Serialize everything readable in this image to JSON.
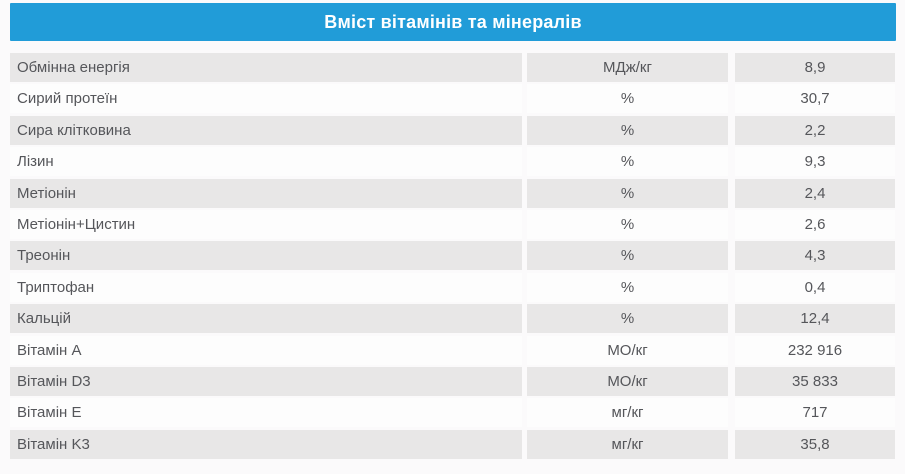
{
  "page": {
    "background": "#fbfafb"
  },
  "header": {
    "title": "Вміст вітамінів та мінералів",
    "background": "#219cd8",
    "text_color": "#ffffff"
  },
  "table": {
    "row_text_color": "#55565a",
    "row_odd_background": "#e8e7e7",
    "row_even_background": "#fdfdfd"
  },
  "chart_data": {
    "type": "table",
    "title": "Вміст вітамінів та мінералів",
    "legend_position": "none",
    "grid": false,
    "rows": [
      {
        "parameter": "Обмінна енергія",
        "unit": "МДж/кг",
        "value": "8,9"
      },
      {
        "parameter": "Сирий протеїн",
        "unit": "%",
        "value": "30,7"
      },
      {
        "parameter": "Сира клітковина",
        "unit": "%",
        "value": "2,2"
      },
      {
        "parameter": "Лізин",
        "unit": "%",
        "value": "9,3"
      },
      {
        "parameter": "Метіонін",
        "unit": "%",
        "value": "2,4"
      },
      {
        "parameter": "Метіонін+Цистин",
        "unit": "%",
        "value": "2,6"
      },
      {
        "parameter": "Треонін",
        "unit": "%",
        "value": "4,3"
      },
      {
        "parameter": "Триптофан",
        "unit": "%",
        "value": "0,4"
      },
      {
        "parameter": "Кальцій",
        "unit": "%",
        "value": "12,4"
      },
      {
        "parameter": "Вітамін A",
        "unit": "МО/кг",
        "value": "232 916"
      },
      {
        "parameter": "Вітамін D3",
        "unit": "МО/кг",
        "value": "35 833"
      },
      {
        "parameter": "Вітамін E",
        "unit": "мг/кг",
        "value": "717"
      },
      {
        "parameter": "Вітамін K3",
        "unit": "мг/кг",
        "value": "35,8"
      }
    ]
  }
}
